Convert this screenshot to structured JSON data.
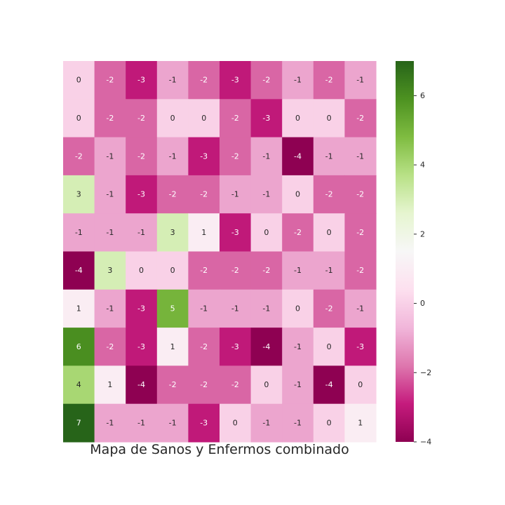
{
  "chart_data": {
    "type": "heatmap",
    "title": "Mapa de Sanos y Enfermos combinado",
    "colormap": "PiYG",
    "vmin": -4,
    "vmax": 7,
    "annotations": true,
    "xlabel": "",
    "ylabel": "",
    "colorbar_ticks": [
      -4,
      -2,
      0,
      2,
      4,
      6
    ],
    "colorbar_tick_labels": [
      "−4",
      "−2",
      "0",
      "2",
      "4",
      "6"
    ],
    "values": [
      [
        0,
        -2,
        -3,
        -1,
        -2,
        -3,
        -2,
        -1,
        -2,
        -1
      ],
      [
        0,
        -2,
        -2,
        0,
        0,
        -2,
        -3,
        0,
        0,
        -2
      ],
      [
        -2,
        -1,
        -2,
        -1,
        -3,
        -2,
        -1,
        -4,
        -1,
        -1
      ],
      [
        3,
        -1,
        -3,
        -2,
        -2,
        -1,
        -1,
        0,
        -2,
        -2
      ],
      [
        -1,
        -1,
        -1,
        3,
        1,
        -3,
        0,
        -2,
        0,
        -2
      ],
      [
        -4,
        3,
        0,
        0,
        -2,
        -2,
        -2,
        -1,
        -1,
        -2
      ],
      [
        1,
        -1,
        -3,
        5,
        -1,
        -1,
        -1,
        0,
        -2,
        -1
      ],
      [
        6,
        -2,
        -3,
        1,
        -2,
        -3,
        -4,
        -1,
        0,
        -3
      ],
      [
        4,
        1,
        -4,
        -2,
        -2,
        -2,
        0,
        -1,
        -4,
        0
      ],
      [
        7,
        -1,
        -1,
        -1,
        -3,
        0,
        -1,
        -1,
        0,
        1
      ]
    ]
  }
}
